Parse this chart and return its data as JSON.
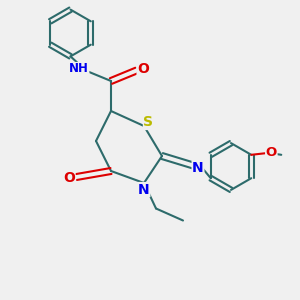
{
  "bg_color": "#f0f0f0",
  "bond_color": "#2d6b6b",
  "bond_width": 1.5,
  "atom_colors": {
    "N": "#0000ee",
    "O": "#dd0000",
    "S": "#bbbb00",
    "C": "#2d6b6b"
  },
  "font_size": 8.5
}
